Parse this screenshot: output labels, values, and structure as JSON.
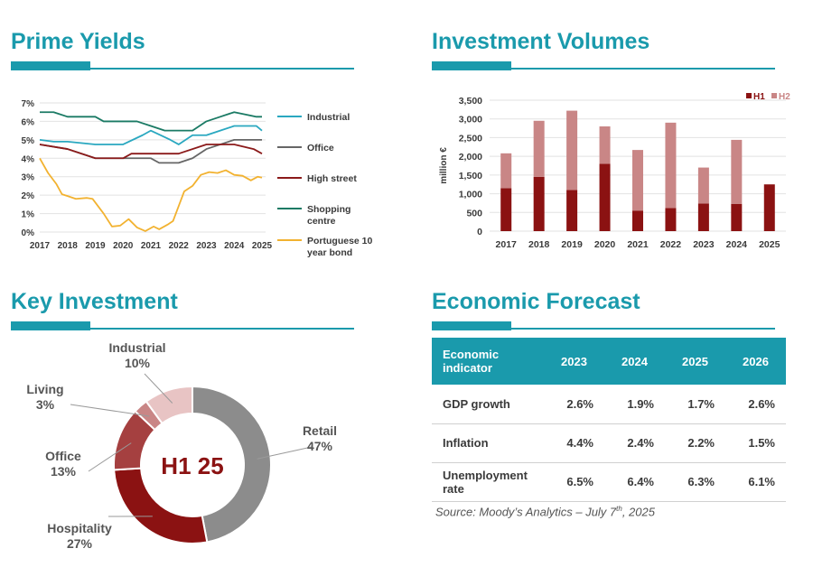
{
  "panels": {
    "prime_yields": {
      "title": "Prime Yields"
    },
    "investment_volumes": {
      "title": "Investment Volumes"
    },
    "key_investment": {
      "title": "Key Investment"
    },
    "economic_forecast": {
      "title": "Economic Forecast"
    }
  },
  "chart_data": [
    {
      "id": "prime_yields",
      "type": "line",
      "title": "",
      "x_ticks": [
        "2017",
        "2018",
        "2019",
        "2020",
        "2021",
        "2022",
        "2023",
        "2024",
        "2025"
      ],
      "y_ticks": [
        "0%",
        "1%",
        "2%",
        "3%",
        "4%",
        "5%",
        "6%",
        "7%"
      ],
      "ylim": [
        0,
        7
      ],
      "grid": true,
      "legend_position": "right",
      "series": [
        {
          "name": "Industrial",
          "color": "#2aa8c0",
          "points": [
            [
              2017,
              5.0
            ],
            [
              2017.5,
              4.9
            ],
            [
              2018,
              4.9
            ],
            [
              2019,
              4.75
            ],
            [
              2020,
              4.75
            ],
            [
              2020.7,
              5.25
            ],
            [
              2021,
              5.5
            ],
            [
              2021.7,
              5.0
            ],
            [
              2022,
              4.75
            ],
            [
              2022.5,
              5.25
            ],
            [
              2023,
              5.25
            ],
            [
              2023.5,
              5.5
            ],
            [
              2024,
              5.75
            ],
            [
              2024.8,
              5.75
            ],
            [
              2025,
              5.5
            ]
          ]
        },
        {
          "name": "Office",
          "color": "#666666",
          "points": [
            [
              2017,
              4.75
            ],
            [
              2018,
              4.5
            ],
            [
              2019,
              4.0
            ],
            [
              2020,
              4.0
            ],
            [
              2021,
              4.0
            ],
            [
              2021.3,
              3.75
            ],
            [
              2022,
              3.75
            ],
            [
              2022.5,
              4.0
            ],
            [
              2023,
              4.5
            ],
            [
              2024,
              5.0
            ],
            [
              2025,
              5.0
            ]
          ]
        },
        {
          "name": "High street",
          "color": "#8b1a1a",
          "points": [
            [
              2017,
              4.75
            ],
            [
              2018,
              4.5
            ],
            [
              2019,
              4.0
            ],
            [
              2020,
              4.0
            ],
            [
              2020.3,
              4.25
            ],
            [
              2022,
              4.25
            ],
            [
              2023,
              4.75
            ],
            [
              2024,
              4.75
            ],
            [
              2024.7,
              4.5
            ],
            [
              2025,
              4.25
            ]
          ]
        },
        {
          "name": "Shopping centre",
          "color": "#1a7a64",
          "points": [
            [
              2017,
              6.5
            ],
            [
              2017.5,
              6.5
            ],
            [
              2018,
              6.25
            ],
            [
              2019,
              6.25
            ],
            [
              2019.3,
              6.0
            ],
            [
              2020,
              6.0
            ],
            [
              2020.5,
              6.0
            ],
            [
              2021,
              5.75
            ],
            [
              2021.5,
              5.5
            ],
            [
              2022,
              5.5
            ],
            [
              2022.5,
              5.5
            ],
            [
              2023,
              6.0
            ],
            [
              2023.5,
              6.25
            ],
            [
              2024,
              6.5
            ],
            [
              2024.8,
              6.25
            ],
            [
              2025,
              6.25
            ]
          ]
        },
        {
          "name": "Portuguese 10 year bond",
          "color": "#f2b230",
          "points": [
            [
              2017,
              4.0
            ],
            [
              2017.3,
              3.2
            ],
            [
              2017.6,
              2.6
            ],
            [
              2017.8,
              2.05
            ],
            [
              2018,
              1.95
            ],
            [
              2018.3,
              1.8
            ],
            [
              2018.7,
              1.85
            ],
            [
              2018.9,
              1.8
            ],
            [
              2019.3,
              1.0
            ],
            [
              2019.6,
              0.3
            ],
            [
              2019.9,
              0.35
            ],
            [
              2020.2,
              0.7
            ],
            [
              2020.5,
              0.25
            ],
            [
              2020.8,
              0.05
            ],
            [
              2021.1,
              0.3
            ],
            [
              2021.3,
              0.15
            ],
            [
              2021.6,
              0.4
            ],
            [
              2021.8,
              0.6
            ],
            [
              2022.2,
              2.2
            ],
            [
              2022.5,
              2.5
            ],
            [
              2022.8,
              3.1
            ],
            [
              2023.1,
              3.25
            ],
            [
              2023.4,
              3.2
            ],
            [
              2023.7,
              3.35
            ],
            [
              2024,
              3.1
            ],
            [
              2024.3,
              3.05
            ],
            [
              2024.6,
              2.8
            ],
            [
              2024.85,
              3.0
            ],
            [
              2025,
              2.95
            ]
          ]
        }
      ]
    },
    {
      "id": "investment_volumes",
      "type": "bar",
      "title": "",
      "ylabel": "million €",
      "categories": [
        "2017",
        "2018",
        "2019",
        "2020",
        "2021",
        "2022",
        "2023",
        "2024",
        "2025"
      ],
      "y_ticks": [
        "0",
        "500",
        "1,000",
        "1,500",
        "2,000",
        "2,500",
        "3,000",
        "3,500"
      ],
      "ylim": [
        0,
        3500
      ],
      "stacked": true,
      "grid": true,
      "legend_position": "top-right",
      "series": [
        {
          "name": "H1",
          "color": "#8b1212",
          "values": [
            1150,
            1450,
            1100,
            1800,
            550,
            620,
            740,
            730,
            1250
          ]
        },
        {
          "name": "H2",
          "color": "#c98686",
          "values": [
            930,
            1500,
            2120,
            1000,
            1620,
            2280,
            960,
            1710,
            0
          ]
        }
      ]
    },
    {
      "id": "key_investment",
      "type": "pie",
      "title": "",
      "center_label": "H1 25",
      "slices": [
        {
          "label": "Retail",
          "value": 47,
          "value_label": "47%",
          "color": "#8c8c8c"
        },
        {
          "label": "Hospitality",
          "value": 27,
          "value_label": "27%",
          "color": "#8b1212"
        },
        {
          "label": "Office",
          "value": 13,
          "value_label": "13%",
          "color": "#a54040"
        },
        {
          "label": "Living",
          "value": 3,
          "value_label": "3%",
          "color": "#c98686"
        },
        {
          "label": "Industrial",
          "value": 10,
          "value_label": "10%",
          "color": "#e8c4c4"
        }
      ]
    },
    {
      "id": "economic_forecast",
      "type": "table",
      "header": {
        "indicator": "Economic indicator",
        "years": [
          "2023",
          "2024",
          "2025",
          "2026"
        ]
      },
      "rows": [
        {
          "indicator": "GDP growth",
          "values": [
            "2.6%",
            "1.9%",
            "1.7%",
            "2.6%"
          ]
        },
        {
          "indicator": "Inflation",
          "values": [
            "4.4%",
            "2.4%",
            "2.2%",
            "1.5%"
          ]
        },
        {
          "indicator": "Unemployment rate",
          "values": [
            "6.5%",
            "6.4%",
            "6.3%",
            "6.1%"
          ]
        }
      ],
      "source": {
        "prefix": "Source: Moody’s Analytics – July 7",
        "sup": "th",
        "suffix": ", 2025"
      }
    }
  ]
}
